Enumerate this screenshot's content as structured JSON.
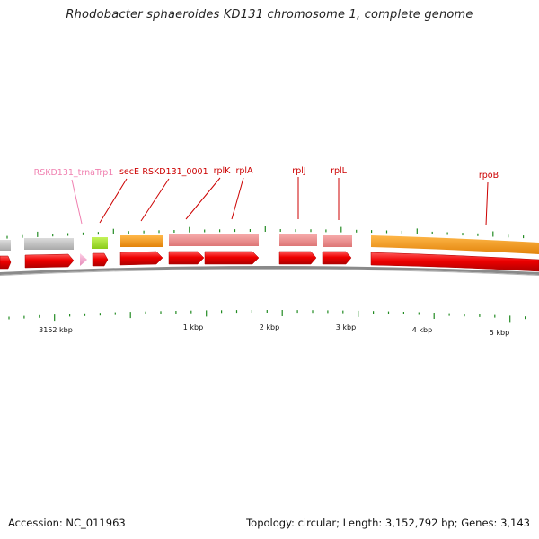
{
  "title": "Rhodobacter sphaeroides KD131 chromosome 1, complete genome",
  "colors": {
    "cds_strand": "#ee0000",
    "cds_stroke": "#aa0000",
    "trna": "#f0a0c8",
    "grey_feature": "#c8c8c8",
    "green_feature": "#a6e22a",
    "orange_feature": "#f39a1a",
    "pink_feature": "#ee8f8f",
    "backbone": "#7a7a7a",
    "tick": "#228b22",
    "label_red": "#cc0000",
    "label_pink": "#f080b0"
  },
  "gene_labels": [
    {
      "text": "RSKD131_trnaTrp1",
      "color": "pink"
    },
    {
      "text": "secE",
      "color": "red"
    },
    {
      "text": "RSKD131_0001",
      "color": "red"
    },
    {
      "text": "rplK",
      "color": "red"
    },
    {
      "text": "rplA",
      "color": "red"
    },
    {
      "text": "rplJ",
      "color": "red"
    },
    {
      "text": "rplL",
      "color": "red"
    },
    {
      "text": "rpoB",
      "color": "red"
    }
  ],
  "scale_labels": [
    "3152 kbp",
    "1 kbp",
    "2 kbp",
    "3 kbp",
    "4 kbp",
    "5 kbp"
  ],
  "footer": {
    "accession": "Accession: NC_011963",
    "summary": "Topology: circular; Length: 3,152,792 bp; Genes: 3,143"
  }
}
